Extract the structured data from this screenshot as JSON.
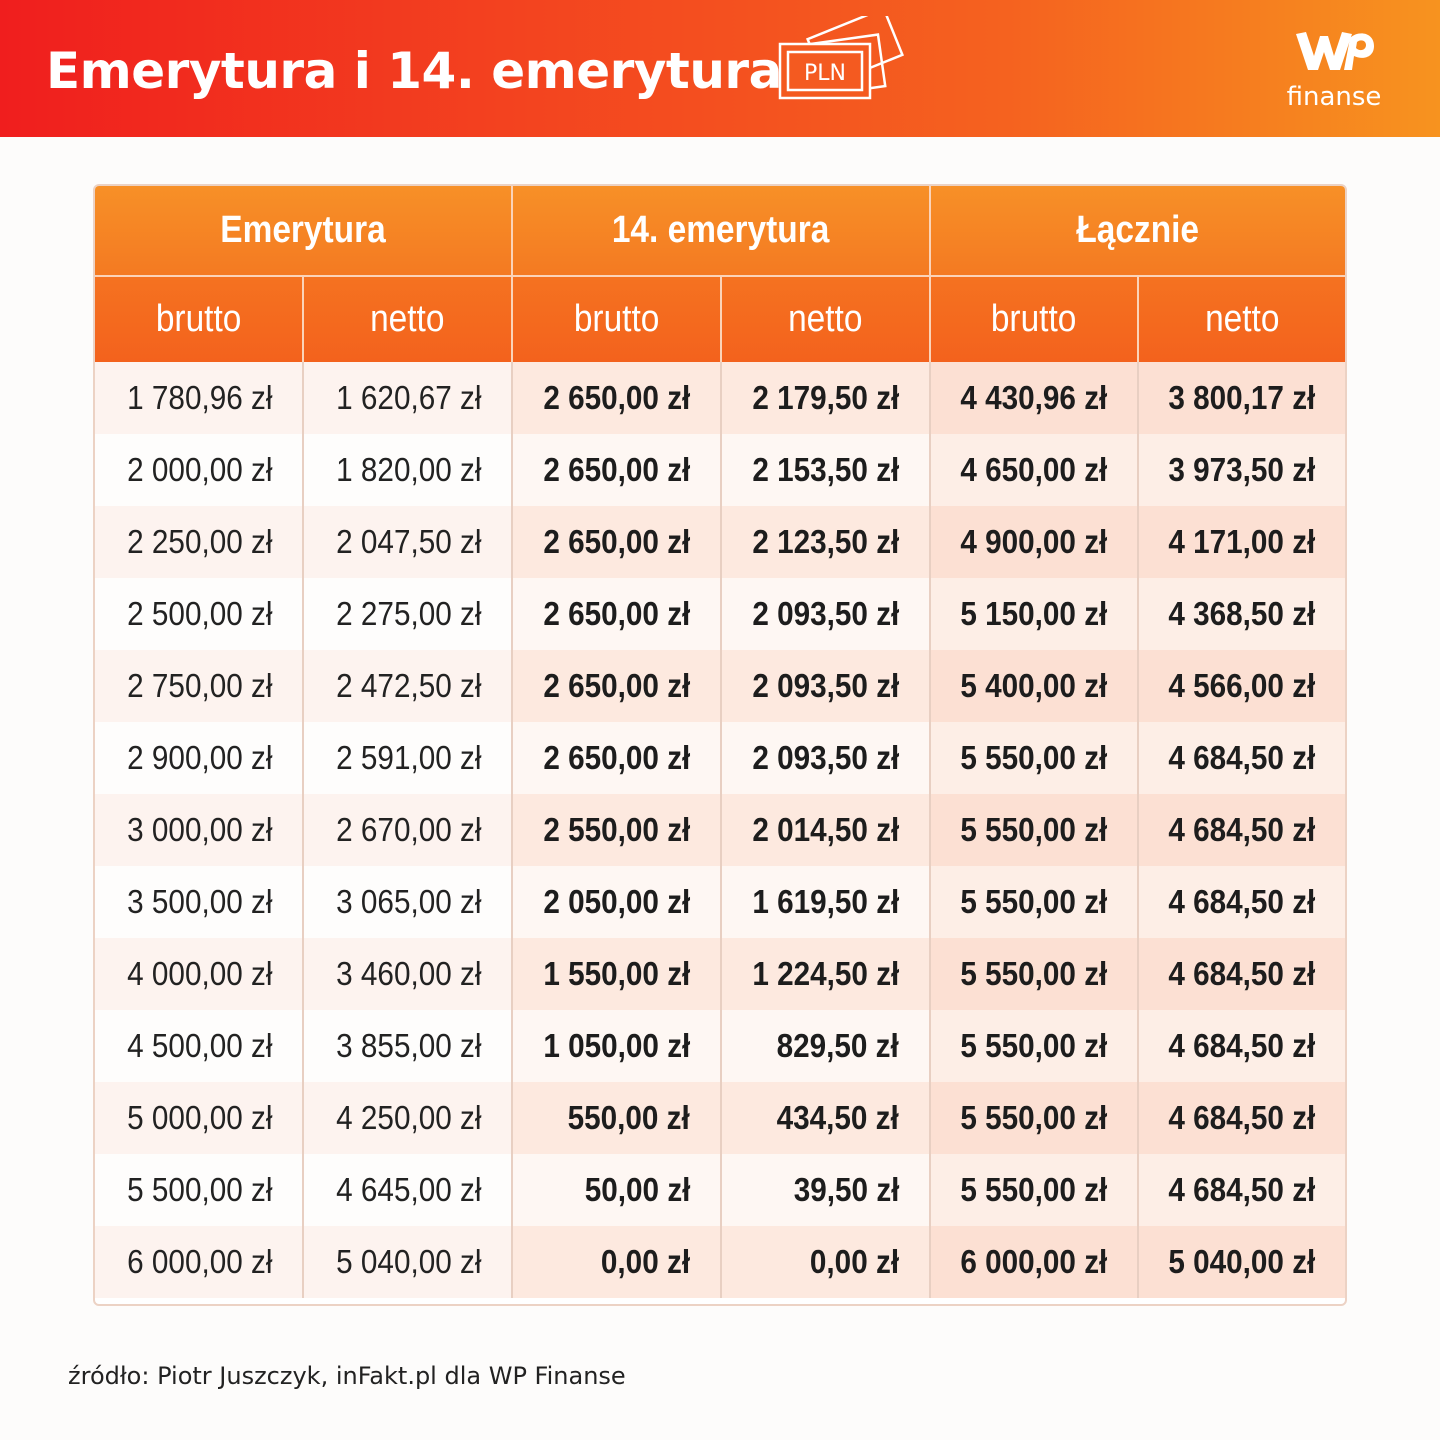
{
  "header": {
    "title": "Emerytura i 14. emerytura",
    "currency_icon_label": "PLN",
    "logo_text": "finanse",
    "logo_mark": "WP"
  },
  "colors": {
    "header_gradient_start": "#f01e1e",
    "header_gradient_end": "#f7931f",
    "table_header": "#f47a22"
  },
  "table": {
    "groups": [
      "Emerytura",
      "14. emerytura",
      "Łącznie"
    ],
    "subheaders": [
      "brutto",
      "netto",
      "brutto",
      "netto",
      "brutto",
      "netto"
    ],
    "rows": [
      [
        "1 780,96 zł",
        "1 620,67 zł",
        "2 650,00 zł",
        "2 179,50 zł",
        "4 430,96 zł",
        "3 800,17 zł"
      ],
      [
        "2 000,00 zł",
        "1 820,00 zł",
        "2 650,00 zł",
        "2 153,50 zł",
        "4 650,00 zł",
        "3 973,50 zł"
      ],
      [
        "2 250,00 zł",
        "2 047,50 zł",
        "2 650,00 zł",
        "2 123,50 zł",
        "4 900,00 zł",
        "4 171,00 zł"
      ],
      [
        "2 500,00 zł",
        "2 275,00 zł",
        "2 650,00 zł",
        "2 093,50 zł",
        "5 150,00 zł",
        "4 368,50 zł"
      ],
      [
        "2 750,00 zł",
        "2 472,50 zł",
        "2 650,00 zł",
        "2 093,50 zł",
        "5 400,00 zł",
        "4 566,00 zł"
      ],
      [
        "2 900,00 zł",
        "2 591,00 zł",
        "2 650,00 zł",
        "2 093,50 zł",
        "5 550,00 zł",
        "4 684,50 zł"
      ],
      [
        "3 000,00 zł",
        "2 670,00 zł",
        "2 550,00 zł",
        "2 014,50 zł",
        "5 550,00 zł",
        "4 684,50 zł"
      ],
      [
        "3 500,00 zł",
        "3 065,00 zł",
        "2 050,00 zł",
        "1 619,50 zł",
        "5 550,00 zł",
        "4 684,50 zł"
      ],
      [
        "4 000,00 zł",
        "3 460,00 zł",
        "1 550,00 zł",
        "1 224,50 zł",
        "5 550,00 zł",
        "4 684,50 zł"
      ],
      [
        "4 500,00 zł",
        "3 855,00 zł",
        "1 050,00 zł",
        "829,50 zł",
        "5 550,00 zł",
        "4 684,50 zł"
      ],
      [
        "5 000,00 zł",
        "4 250,00 zł",
        "550,00 zł",
        "434,50 zł",
        "5 550,00 zł",
        "4 684,50 zł"
      ],
      [
        "5 500,00 zł",
        "4 645,00 zł",
        "50,00 zł",
        "39,50 zł",
        "5 550,00 zł",
        "4 684,50 zł"
      ],
      [
        "6 000,00 zł",
        "5 040,00 zł",
        "0,00 zł",
        "0,00 zł",
        "6 000,00 zł",
        "5 040,00 zł"
      ]
    ]
  },
  "footer": {
    "source": "źródło: Piotr Juszczyk, inFakt.pl dla WP Finanse"
  }
}
